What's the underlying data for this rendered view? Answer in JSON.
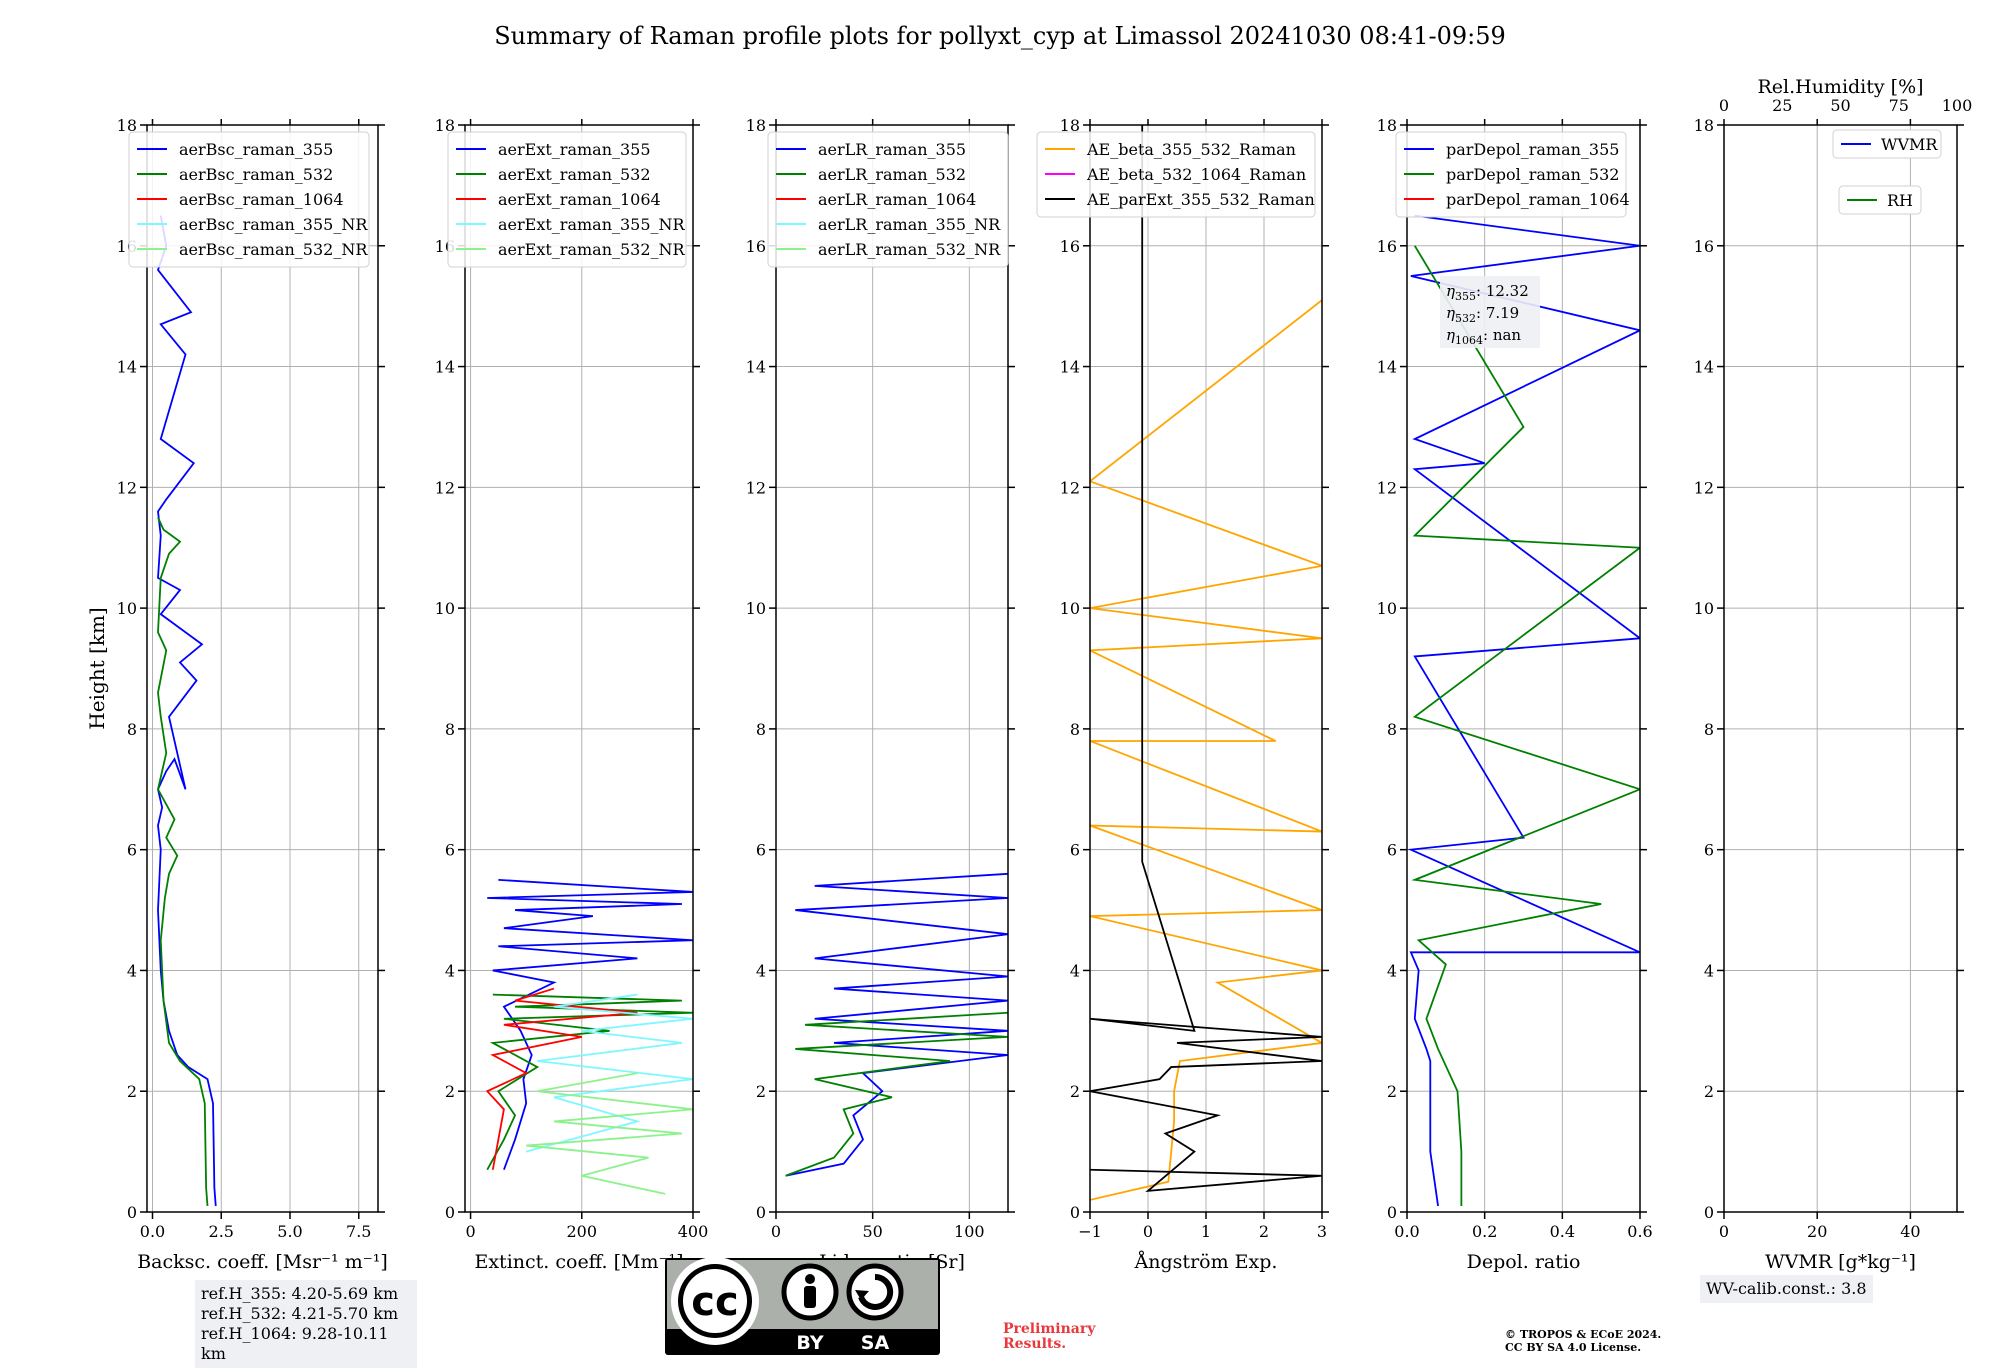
{
  "title": "Summary of Raman profile plots for pollyxt_cyp at Limassol 20241030 08:41-09:59",
  "colors": {
    "blue": "#0000ff",
    "green": "#008000",
    "red": "#ff0000",
    "cyan": "#7ff7ff",
    "lightgreen": "#8cf28c",
    "orange": "#ffa500",
    "magenta": "#ff00ff",
    "black": "#000000",
    "grid": "#b0b0b0",
    "legend_bg": "#ffffff",
    "infobox_bg": "#eef0f4",
    "prelim": "#e8383d"
  },
  "chart_data": [
    {
      "type": "line",
      "name": "backscatter",
      "ylabel": "Height [km]",
      "xlabel": "Backsc. coeff. [Msr⁻¹ m⁻¹]",
      "xlim": [
        -0.2,
        8.2
      ],
      "ylim": [
        0,
        18
      ],
      "xticks": [
        0,
        2.5,
        5,
        7.5
      ],
      "xticklabels": [
        "0.0",
        "2.5",
        "5.0",
        "7.5"
      ],
      "yticks": [
        0,
        2,
        4,
        6,
        8,
        10,
        12,
        14,
        16,
        18
      ],
      "yticklabels": [
        "0",
        "2",
        "4",
        "6",
        "8",
        "10",
        "12",
        "14",
        "16",
        "18"
      ],
      "legend": [
        "aerBsc_raman_355",
        "aerBsc_raman_532",
        "aerBsc_raman_1064",
        "aerBsc_raman_355_NR",
        "aerBsc_raman_532_NR"
      ],
      "legend_colors": [
        "blue",
        "green",
        "red",
        "cyan",
        "lightgreen"
      ],
      "series": [
        {
          "name": "aerBsc_raman_355",
          "color": "blue",
          "x": [
            2.3,
            2.25,
            2.2,
            2.0,
            1.3,
            0.9,
            0.6,
            0.4,
            0.3,
            0.25,
            0.2,
            0.25,
            0.3,
            0.2,
            0.35,
            0.2,
            0.5,
            0.8,
            1.2,
            0.6,
            1.6,
            1.0,
            1.8,
            0.3,
            1.0,
            0.2,
            0.3,
            0.2,
            0.5,
            1.5,
            0.3,
            1.2,
            0.3,
            1.4,
            0.2,
            0.5,
            0.3
          ],
          "y": [
            0.1,
            0.4,
            1.8,
            2.2,
            2.4,
            2.6,
            3.0,
            3.5,
            4.0,
            4.5,
            5.0,
            5.5,
            6.0,
            6.4,
            6.7,
            7.0,
            7.3,
            7.5,
            7.0,
            8.2,
            8.8,
            9.1,
            9.4,
            9.9,
            10.3,
            10.5,
            11.2,
            11.6,
            11.8,
            12.4,
            12.8,
            14.2,
            14.7,
            14.9,
            15.6,
            16.0,
            16.5
          ]
        },
        {
          "name": "aerBsc_raman_532",
          "color": "green",
          "x": [
            2.0,
            1.95,
            1.9,
            1.7,
            1.0,
            0.6,
            0.4,
            0.3,
            0.45,
            0.6,
            0.9,
            0.5,
            0.8,
            0.2,
            0.5,
            0.3,
            0.2,
            0.5,
            0.2,
            0.3,
            0.6,
            1.0,
            0.4,
            0.2
          ],
          "y": [
            0.1,
            0.4,
            1.8,
            2.2,
            2.5,
            2.8,
            3.5,
            4.5,
            5.2,
            5.6,
            5.9,
            6.2,
            6.5,
            7.0,
            7.6,
            8.2,
            8.6,
            9.3,
            9.6,
            10.5,
            10.9,
            11.1,
            11.3,
            11.5
          ]
        },
        {
          "name": "aerBsc_raman_1064",
          "color": "red",
          "x": [],
          "y": []
        },
        {
          "name": "aerBsc_raman_355_NR",
          "color": "cyan",
          "x": [],
          "y": []
        },
        {
          "name": "aerBsc_raman_532_NR",
          "color": "lightgreen",
          "x": [],
          "y": []
        }
      ]
    },
    {
      "type": "line",
      "name": "extinction",
      "xlabel": "Extinct. coeff. [Mm⁻¹]",
      "xlim": [
        -10,
        400
      ],
      "ylim": [
        0,
        18
      ],
      "xticks": [
        0,
        200,
        400
      ],
      "xticklabels": [
        "0",
        "200",
        "400"
      ],
      "yticks": [
        0,
        2,
        4,
        6,
        8,
        10,
        12,
        14,
        16,
        18
      ],
      "yticklabels": [
        "0",
        "2",
        "4",
        "6",
        "8",
        "10",
        "12",
        "14",
        "16",
        "18"
      ],
      "legend": [
        "aerExt_raman_355",
        "aerExt_raman_532",
        "aerExt_raman_1064",
        "aerExt_raman_355_NR",
        "aerExt_raman_532_NR"
      ],
      "legend_colors": [
        "blue",
        "green",
        "red",
        "cyan",
        "lightgreen"
      ],
      "series": [
        {
          "name": "aerExt_raman_355",
          "color": "blue",
          "x": [
            60,
            80,
            100,
            95,
            110,
            90,
            60,
            150,
            40,
            300,
            50,
            400,
            60,
            220,
            80,
            380,
            30,
            400,
            50
          ],
          "y": [
            0.7,
            1.2,
            1.8,
            2.2,
            2.6,
            3.0,
            3.4,
            3.8,
            4.0,
            4.2,
            4.4,
            4.5,
            4.7,
            4.9,
            5.0,
            5.1,
            5.2,
            5.3,
            5.5
          ]
        },
        {
          "name": "aerExt_raman_532",
          "color": "green",
          "x": [
            30,
            60,
            80,
            50,
            120,
            40,
            250,
            60,
            400,
            80,
            380,
            40
          ],
          "y": [
            0.7,
            1.2,
            1.6,
            2.0,
            2.4,
            2.8,
            3.0,
            3.2,
            3.3,
            3.4,
            3.5,
            3.6
          ]
        },
        {
          "name": "aerExt_raman_1064",
          "color": "red",
          "x": [
            40,
            50,
            60,
            30,
            100,
            40,
            200,
            60,
            300,
            80,
            150
          ],
          "y": [
            0.7,
            1.2,
            1.7,
            2.0,
            2.3,
            2.6,
            2.9,
            3.1,
            3.3,
            3.5,
            3.7
          ]
        },
        {
          "name": "aerExt_raman_355_NR",
          "color": "cyan",
          "x": [
            100,
            300,
            150,
            400,
            120,
            380,
            200,
            400,
            150,
            300
          ],
          "y": [
            1.0,
            1.5,
            1.9,
            2.2,
            2.5,
            2.8,
            3.0,
            3.2,
            3.4,
            3.6
          ]
        },
        {
          "name": "aerExt_raman_532_NR",
          "color": "lightgreen",
          "x": [
            350,
            200,
            320,
            100,
            380,
            150,
            400,
            120,
            300
          ],
          "y": [
            0.3,
            0.6,
            0.9,
            1.1,
            1.3,
            1.5,
            1.7,
            2.0,
            2.3
          ]
        }
      ]
    },
    {
      "type": "line",
      "name": "lidar_ratio",
      "xlabel": "Lidar ratio [Sr]",
      "xlim": [
        0,
        120
      ],
      "ylim": [
        0,
        18
      ],
      "xticks": [
        0,
        50,
        100
      ],
      "xticklabels": [
        "0",
        "50",
        "100"
      ],
      "yticks": [
        0,
        2,
        4,
        6,
        8,
        10,
        12,
        14,
        16,
        18
      ],
      "yticklabels": [
        "0",
        "2",
        "4",
        "6",
        "8",
        "10",
        "12",
        "14",
        "16",
        "18"
      ],
      "legend": [
        "aerLR_raman_355",
        "aerLR_raman_532",
        "aerLR_raman_1064",
        "aerLR_raman_355_NR",
        "aerLR_raman_532_NR"
      ],
      "legend_colors": [
        "blue",
        "green",
        "red",
        "cyan",
        "lightgreen"
      ],
      "series": [
        {
          "name": "aerLR_raman_355",
          "color": "blue",
          "x": [
            5,
            35,
            45,
            40,
            55,
            45,
            120,
            30,
            120,
            20,
            120,
            30,
            120,
            20,
            120,
            10,
            120,
            20,
            120
          ],
          "y": [
            0.6,
            0.8,
            1.2,
            1.6,
            2.0,
            2.3,
            2.6,
            2.8,
            3.0,
            3.2,
            3.5,
            3.7,
            3.9,
            4.2,
            4.6,
            5.0,
            5.2,
            5.4,
            5.6
          ]
        },
        {
          "name": "aerLR_raman_532",
          "color": "green",
          "x": [
            5,
            30,
            40,
            35,
            60,
            20,
            90,
            10,
            120,
            15,
            120
          ],
          "y": [
            0.6,
            0.9,
            1.3,
            1.7,
            1.9,
            2.2,
            2.5,
            2.7,
            2.9,
            3.1,
            3.3
          ]
        },
        {
          "name": "aerLR_raman_1064",
          "color": "red",
          "x": [],
          "y": []
        },
        {
          "name": "aerLR_raman_355_NR",
          "color": "cyan",
          "x": [],
          "y": []
        },
        {
          "name": "aerLR_raman_532_NR",
          "color": "lightgreen",
          "x": [],
          "y": []
        }
      ]
    },
    {
      "type": "line",
      "name": "angstrom",
      "xlabel": "Ångström Exp.",
      "xlim": [
        -1,
        3
      ],
      "ylim": [
        0,
        18
      ],
      "xticks": [
        -1,
        0,
        1,
        2,
        3
      ],
      "xticklabels": [
        "−1",
        "0",
        "1",
        "2",
        "3"
      ],
      "yticks": [
        0,
        2,
        4,
        6,
        8,
        10,
        12,
        14,
        16,
        18
      ],
      "yticklabels": [
        "0",
        "2",
        "4",
        "6",
        "8",
        "10",
        "12",
        "14",
        "16",
        "18"
      ],
      "legend": [
        "AE_beta_355_532_Raman",
        "AE_beta_532_1064_Raman",
        "AE_parExt_355_532_Raman"
      ],
      "legend_colors": [
        "orange",
        "magenta",
        "black"
      ],
      "series": [
        {
          "name": "AE_beta_355_532_Raman",
          "color": "orange",
          "x": [
            -1,
            0.35,
            0.45,
            0.45,
            0.55,
            3,
            1.2,
            3,
            -1,
            3,
            -1,
            3,
            -1,
            2.2,
            -1,
            3,
            -1,
            3,
            -1,
            3
          ],
          "y": [
            0.2,
            0.5,
            1.5,
            2.0,
            2.5,
            2.8,
            3.8,
            4.0,
            4.9,
            5.0,
            6.4,
            6.3,
            7.8,
            7.8,
            9.3,
            9.5,
            10.0,
            10.7,
            12.1,
            15.1
          ]
        },
        {
          "name": "AE_beta_532_1064_Raman",
          "color": "magenta",
          "x": [],
          "y": []
        },
        {
          "name": "AE_parExt_355_532_Raman",
          "color": "black",
          "x": [
            -1,
            3,
            0.0,
            0.8,
            0.3,
            1.2,
            -1,
            0.2,
            0.4,
            3,
            0.5,
            3,
            -1,
            0.8,
            -0.1,
            -0.1
          ],
          "y": [
            0.7,
            0.6,
            0.35,
            1.0,
            1.3,
            1.6,
            2.0,
            2.2,
            2.4,
            2.5,
            2.8,
            2.9,
            3.2,
            3.0,
            5.8,
            18
          ]
        }
      ]
    },
    {
      "type": "line",
      "name": "depol",
      "xlabel": "Depol. ratio",
      "xlim": [
        0,
        0.6
      ],
      "ylim": [
        0,
        18
      ],
      "xticks": [
        0,
        0.2,
        0.4,
        0.6
      ],
      "xticklabels": [
        "0.0",
        "0.2",
        "0.4",
        "0.6"
      ],
      "yticks": [
        0,
        2,
        4,
        6,
        8,
        10,
        12,
        14,
        16,
        18
      ],
      "yticklabels": [
        "0",
        "2",
        "4",
        "6",
        "8",
        "10",
        "12",
        "14",
        "16",
        "18"
      ],
      "legend": [
        "parDepol_raman_355",
        "parDepol_raman_532",
        "parDepol_raman_1064"
      ],
      "legend_colors": [
        "blue",
        "green",
        "red"
      ],
      "series": [
        {
          "name": "parDepol_raman_355",
          "color": "blue",
          "x": [
            0.08,
            0.06,
            0.06,
            0.05,
            0.02,
            0.03,
            0.01,
            0.6,
            0.01,
            0.3,
            0.02,
            0.6,
            0.02,
            0.2,
            0.02,
            0.6,
            0.01,
            0.6,
            0.02
          ],
          "y": [
            0.1,
            1.0,
            2.5,
            2.7,
            3.2,
            4.0,
            4.3,
            4.3,
            6.0,
            6.2,
            9.2,
            9.5,
            12.3,
            12.4,
            12.8,
            14.6,
            15.5,
            16.0,
            16.5
          ]
        },
        {
          "name": "parDepol_raman_532",
          "color": "green",
          "x": [
            0.14,
            0.14,
            0.13,
            0.08,
            0.05,
            0.1,
            0.03,
            0.5,
            0.02,
            0.6,
            0.02,
            0.6,
            0.02,
            0.3,
            0.02
          ],
          "y": [
            0.1,
            1.0,
            2.0,
            2.7,
            3.2,
            4.1,
            4.5,
            5.1,
            5.5,
            7.0,
            8.2,
            11.0,
            11.2,
            13.0,
            16.0
          ]
        },
        {
          "name": "parDepol_raman_1064",
          "color": "red",
          "x": [],
          "y": []
        }
      ],
      "annotation": {
        "eta355": "12.32",
        "eta532": "7.19",
        "eta1064": "nan"
      }
    },
    {
      "type": "line",
      "name": "wvmr",
      "xlabel": "WVMR [g*kg⁻¹]",
      "xlim": [
        0,
        50
      ],
      "ylim": [
        0,
        18
      ],
      "xticks": [
        0,
        20,
        40
      ],
      "xticklabels": [
        "0",
        "20",
        "40"
      ],
      "yticks": [
        0,
        2,
        4,
        6,
        8,
        10,
        12,
        14,
        16,
        18
      ],
      "yticklabels": [
        "0",
        "2",
        "4",
        "6",
        "8",
        "10",
        "12",
        "14",
        "16",
        "18"
      ],
      "top_xlabel": "Rel.Humidity [%]",
      "top_xlim": [
        0,
        100
      ],
      "top_xticks": [
        0,
        25,
        50,
        75,
        100
      ],
      "top_xticklabels": [
        "0",
        "25",
        "50",
        "75",
        "100"
      ],
      "legend": [
        "WVMR",
        "RH"
      ],
      "legend_colors": [
        "blue",
        "green"
      ],
      "series": [
        {
          "name": "WVMR",
          "color": "blue",
          "x": [],
          "y": []
        },
        {
          "name": "RH",
          "color": "green",
          "x": [],
          "y": []
        }
      ]
    }
  ],
  "annotations": {
    "eta355_value": "12.32",
    "eta532_value": "7.19",
    "eta1064_value": "nan",
    "ref_h_355": "ref.H_355: 4.20-5.69 km",
    "ref_h_532": "ref.H_532: 4.21-5.70 km",
    "ref_h_1064": "ref.H_1064: 9.28-10.11 km",
    "wv_calib": "WV-calib.const.: 3.8",
    "preliminary_line1": "Preliminary",
    "preliminary_line2": "Results.",
    "copyright_line1": "© TROPOS & ECoE 2024.",
    "copyright_line2": "CC BY SA 4.0 License.",
    "cc_label": "cc",
    "cc_by": "BY",
    "cc_sa": "SA"
  }
}
